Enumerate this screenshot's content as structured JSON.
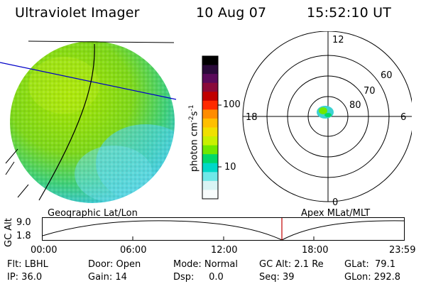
{
  "header": {
    "instrument": "Ultraviolet Imager",
    "date": "10 Aug 07",
    "time": "15:52:10 UT"
  },
  "colorbar": {
    "label": "photon cm",
    "label_exp1": "-2",
    "label_mid": "s",
    "label_exp2": "-1",
    "ticks": [
      "100",
      "10"
    ],
    "colors": [
      "#000000",
      "#2a0a3a",
      "#5a0a5a",
      "#8a0a3a",
      "#c00000",
      "#ff2a00",
      "#ff8c00",
      "#ffbf00",
      "#f0e000",
      "#c8f000",
      "#6fe800",
      "#00d86a",
      "#00d8c8",
      "#70e8e8",
      "#d8f4f4",
      "#f8fcfc"
    ]
  },
  "polar": {
    "mlt_labels": {
      "top": "12",
      "right": "6",
      "left": "18",
      "bottom": "0"
    },
    "lat_labels": [
      "60",
      "70",
      "80"
    ]
  },
  "panel_labels": {
    "left": "Geographic Lat/Lon",
    "right": "Apex MLat/MLT"
  },
  "altitude_plot": {
    "ylabel": "GC Alt",
    "ytick_top": "9.0",
    "ytick_bottom": "1.8",
    "xticks": [
      "00:00",
      "06:00",
      "12:00",
      "18:00",
      "23:59"
    ],
    "cursor_color": "#c00000"
  },
  "info": {
    "row1": {
      "flt": "Flt: LBHL",
      "door": "Door: Open",
      "mode": "Mode: Normal",
      "gcalt": "GC Alt: 2.1 Re",
      "glat": "GLat:  79.1"
    },
    "row2": {
      "ip": "IP: 36.0",
      "gain": "Gain: 14",
      "dsp": "Dsp:     0.0",
      "seq": "Seq: 39",
      "glon": "GLon: 292.8"
    }
  }
}
